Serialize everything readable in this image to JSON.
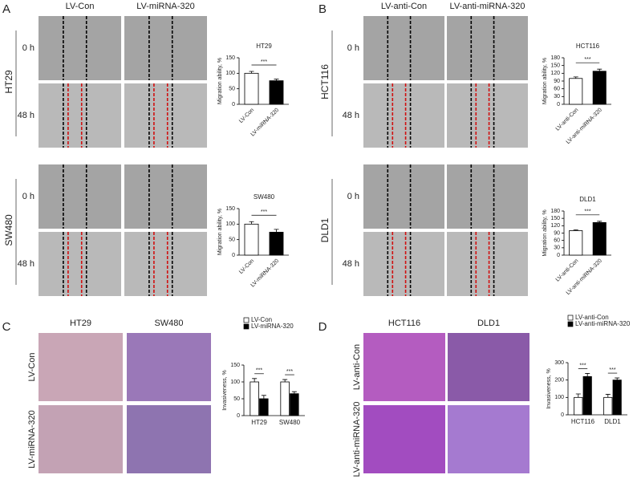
{
  "panels": {
    "A": {
      "letter": "A",
      "columns": [
        "LV-Con",
        "LV-miRNA-320"
      ],
      "rows": [
        {
          "cell_line": "HT29",
          "times": [
            "0 h",
            "48 h"
          ]
        },
        {
          "cell_line": "SW480",
          "times": [
            "0 h",
            "48 h"
          ]
        }
      ]
    },
    "B": {
      "letter": "B",
      "columns": [
        "LV-anti-Con",
        "LV-anti-miRNA-320"
      ],
      "rows": [
        {
          "cell_line": "HCT116",
          "times": [
            "0 h",
            "48 h"
          ]
        },
        {
          "cell_line": "DLD1",
          "times": [
            "0 h",
            "48 h"
          ]
        }
      ]
    },
    "C": {
      "letter": "C",
      "columns": [
        "HT29",
        "SW480"
      ],
      "rows": [
        "LV-Con",
        "LV-miRNA-320"
      ]
    },
    "D": {
      "letter": "D",
      "columns": [
        "HCT116",
        "DLD1"
      ],
      "rows": [
        "LV-anti-Con",
        "LV-anti-miRNA-320"
      ]
    }
  },
  "chart_data": [
    {
      "type": "bar",
      "title": "HT29",
      "ylabel": "Migration ability, %",
      "categories": [
        "LV-Con",
        "LV-miRNA-320"
      ],
      "values": [
        100,
        76
      ],
      "errors": [
        6,
        5
      ],
      "colors": [
        "#ffffff",
        "#000000"
      ],
      "ylim": [
        0,
        150
      ],
      "yticks": [
        0,
        50,
        100,
        150
      ],
      "significance": "***"
    },
    {
      "type": "bar",
      "title": "SW480",
      "ylabel": "Migration ability, %",
      "categories": [
        "LV-Con",
        "LV-miRNA-320"
      ],
      "values": [
        100,
        74
      ],
      "errors": [
        8,
        9
      ],
      "colors": [
        "#ffffff",
        "#000000"
      ],
      "ylim": [
        0,
        150
      ],
      "yticks": [
        0,
        50,
        100,
        150
      ],
      "significance": "***"
    },
    {
      "type": "bar",
      "title": "HCT116",
      "ylabel": "Migration ability, %",
      "categories": [
        "LV-anti-Con",
        "LV-anti-miRNA-320"
      ],
      "values": [
        100,
        128
      ],
      "errors": [
        6,
        8
      ],
      "colors": [
        "#ffffff",
        "#000000"
      ],
      "ylim": [
        0,
        180
      ],
      "yticks": [
        0,
        30,
        60,
        90,
        120,
        150,
        180
      ],
      "significance": "***"
    },
    {
      "type": "bar",
      "title": "DLD1",
      "ylabel": "Migration ability, %",
      "categories": [
        "LV-anti-Con",
        "LV-anti-miRNA-320"
      ],
      "values": [
        100,
        133
      ],
      "errors": [
        3,
        5
      ],
      "colors": [
        "#ffffff",
        "#000000"
      ],
      "ylim": [
        0,
        180
      ],
      "yticks": [
        0,
        30,
        60,
        90,
        120,
        150,
        180
      ],
      "significance": "***"
    },
    {
      "type": "grouped_bar",
      "ylabel": "Invasiveness, %",
      "categories": [
        "HT29",
        "SW480"
      ],
      "series": [
        {
          "name": "LV-Con",
          "color": "#ffffff",
          "values": [
            100,
            100
          ],
          "errors": [
            10,
            7
          ]
        },
        {
          "name": "LV-miRNA-320",
          "color": "#000000",
          "values": [
            50,
            65
          ],
          "errors": [
            10,
            6
          ]
        }
      ],
      "ylim": [
        0,
        150
      ],
      "yticks": [
        0,
        50,
        100,
        150
      ],
      "significance": [
        "***",
        "***"
      ]
    },
    {
      "type": "grouped_bar",
      "ylabel": "Invasiveness, %",
      "categories": [
        "HCT116",
        "DLD1"
      ],
      "series": [
        {
          "name": "LV-anti-Con",
          "color": "#ffffff",
          "values": [
            100,
            100
          ],
          "errors": [
            20,
            18
          ]
        },
        {
          "name": "LV-anti-miRNA-320",
          "color": "#000000",
          "values": [
            220,
            200
          ],
          "errors": [
            18,
            12
          ]
        }
      ],
      "ylim": [
        0,
        300
      ],
      "yticks": [
        0,
        100,
        200,
        300
      ],
      "significance": [
        "***",
        "***"
      ]
    }
  ]
}
